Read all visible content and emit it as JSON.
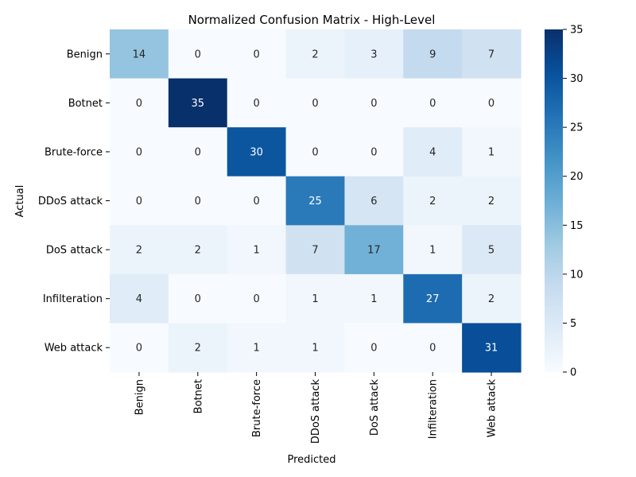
{
  "chart_data": {
    "type": "heatmap",
    "title": "Normalized Confusion Matrix - High-Level",
    "xlabel": "Predicted",
    "ylabel": "Actual",
    "x_categories": [
      "Benign",
      "Botnet",
      "Brute-force",
      "DDoS attack",
      "DoS attack",
      "Infilteration",
      "Web attack"
    ],
    "y_categories": [
      "Benign",
      "Botnet",
      "Brute-force",
      "DDoS attack",
      "DoS attack",
      "Infilteration",
      "Web attack"
    ],
    "values": [
      [
        14,
        0,
        0,
        2,
        3,
        9,
        7
      ],
      [
        0,
        35,
        0,
        0,
        0,
        0,
        0
      ],
      [
        0,
        0,
        30,
        0,
        0,
        4,
        1
      ],
      [
        0,
        0,
        0,
        25,
        6,
        2,
        2
      ],
      [
        2,
        2,
        1,
        7,
        17,
        1,
        5
      ],
      [
        4,
        0,
        0,
        1,
        1,
        27,
        2
      ],
      [
        0,
        2,
        1,
        1,
        0,
        0,
        31
      ]
    ],
    "color_range": [
      0,
      35
    ],
    "colormap": "Blues",
    "colorbar_ticks": [
      0,
      5,
      10,
      15,
      20,
      25,
      30,
      35
    ],
    "colors": {
      "low": "#f7fbff",
      "high": "#08306b",
      "text_dark": "#262626",
      "text_light": "#ffffff"
    }
  }
}
